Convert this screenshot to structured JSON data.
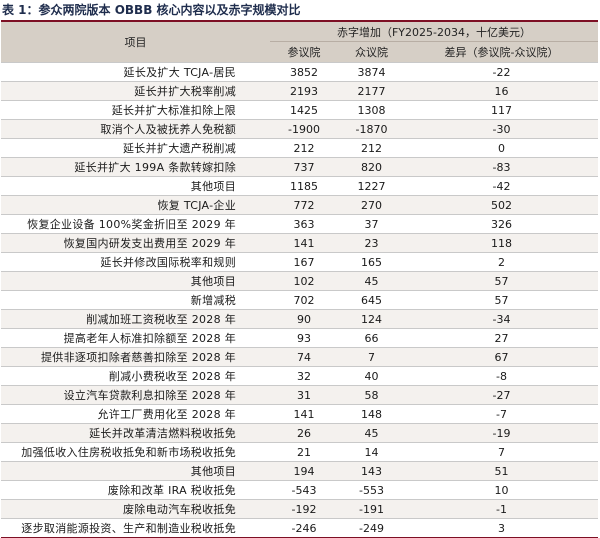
{
  "caption": "表 1：参众两院版本 OBBB 核心内容以及赤字规模对比",
  "header": {
    "item_label": "项目",
    "group_label": "赤字增加（FY2025-2034，十亿美元）",
    "col_senate": "参议院",
    "col_house": "众议院",
    "col_diff": "差异（参议院-众议院）"
  },
  "rows": [
    {
      "name": "延长及扩大 TCJA-居民",
      "senate": "3852",
      "house": "3874",
      "diff": "-22"
    },
    {
      "name": "延长并扩大税率削减",
      "senate": "2193",
      "house": "2177",
      "diff": "16"
    },
    {
      "name": "延长并扩大标准扣除上限",
      "senate": "1425",
      "house": "1308",
      "diff": "117"
    },
    {
      "name": "取消个人及被抚养人免税额",
      "senate": "-1900",
      "house": "-1870",
      "diff": "-30"
    },
    {
      "name": "延长并扩大遗产税削减",
      "senate": "212",
      "house": "212",
      "diff": "0"
    },
    {
      "name": "延长并扩大 199A 条款转嫁扣除",
      "senate": "737",
      "house": "820",
      "diff": "-83"
    },
    {
      "name": "其他项目",
      "senate": "1185",
      "house": "1227",
      "diff": "-42"
    },
    {
      "name": "恢复 TCJA-企业",
      "senate": "772",
      "house": "270",
      "diff": "502"
    },
    {
      "name": "恢复企业设备 100%奖金折旧至 2029 年",
      "senate": "363",
      "house": "37",
      "diff": "326"
    },
    {
      "name": "恢复国内研发支出费用至 2029 年",
      "senate": "141",
      "house": "23",
      "diff": "118"
    },
    {
      "name": "延长并修改国际税率和规则",
      "senate": "167",
      "house": "165",
      "diff": "2"
    },
    {
      "name": "其他项目",
      "senate": "102",
      "house": "45",
      "diff": "57"
    },
    {
      "name": "新增减税",
      "senate": "702",
      "house": "645",
      "diff": "57"
    },
    {
      "name": "削减加班工资税收至 2028 年",
      "senate": "90",
      "house": "124",
      "diff": "-34"
    },
    {
      "name": "提高老年人标准扣除额至 2028 年",
      "senate": "93",
      "house": "66",
      "diff": "27"
    },
    {
      "name": "提供非逐项扣除者慈善扣除至 2028 年",
      "senate": "74",
      "house": "7",
      "diff": "67"
    },
    {
      "name": "削减小费税收至 2028 年",
      "senate": "32",
      "house": "40",
      "diff": "-8"
    },
    {
      "name": "设立汽车贷款利息扣除至 2028 年",
      "senate": "31",
      "house": "58",
      "diff": "-27"
    },
    {
      "name": "允许工厂费用化至 2028 年",
      "senate": "141",
      "house": "148",
      "diff": "-7"
    },
    {
      "name": "延长并改革清洁燃料税收抵免",
      "senate": "26",
      "house": "45",
      "diff": "-19"
    },
    {
      "name": "加强低收入住房税收抵免和新市场税收抵免",
      "senate": "21",
      "house": "14",
      "diff": "7"
    },
    {
      "name": "其他项目",
      "senate": "194",
      "house": "143",
      "diff": "51"
    },
    {
      "name": "废除和改革 IRA 税收抵免",
      "senate": "-543",
      "house": "-553",
      "diff": "10"
    },
    {
      "name": "废除电动汽车税收抵免",
      "senate": "-192",
      "house": "-191",
      "diff": "-1"
    },
    {
      "name": "逐步取消能源投资、生产和制造业税收抵免",
      "senate": "-246",
      "house": "-249",
      "diff": "3"
    }
  ]
}
